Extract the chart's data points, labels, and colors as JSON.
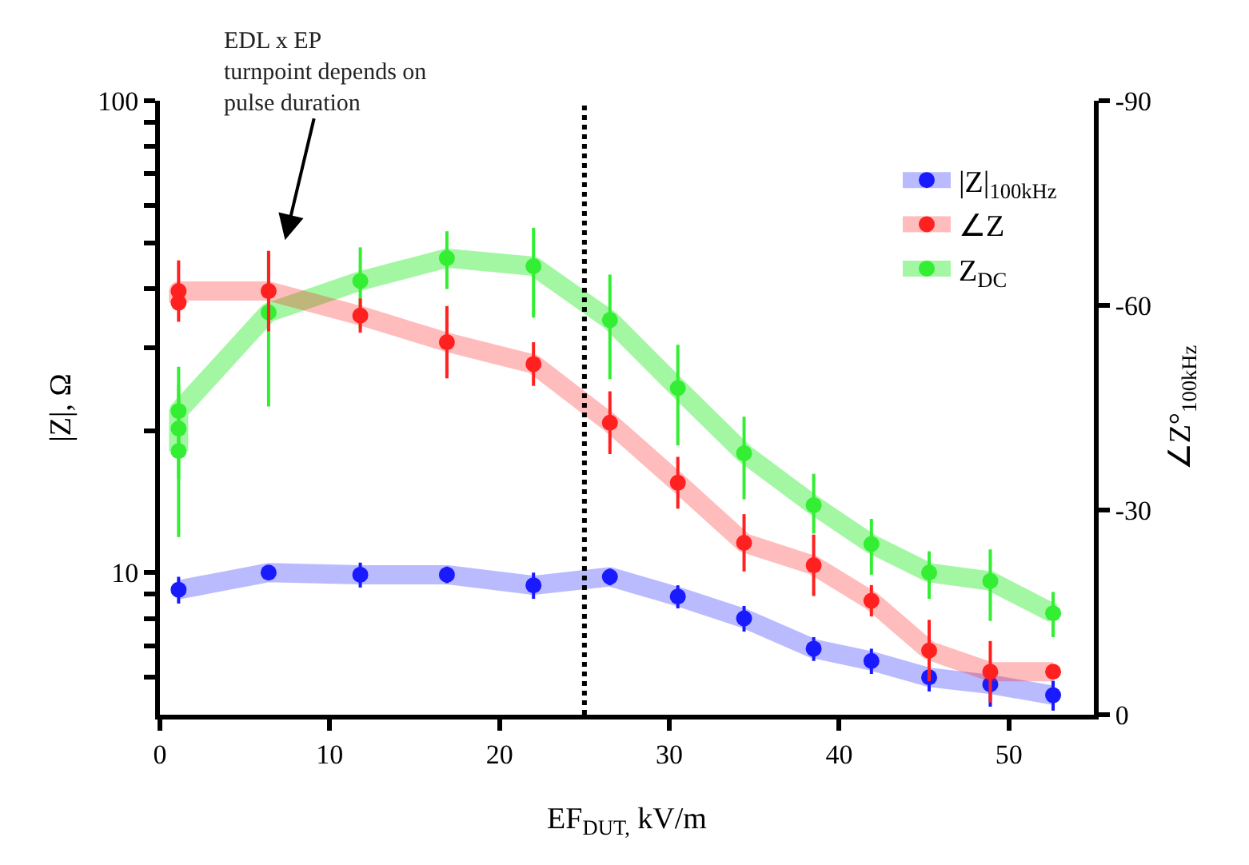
{
  "chart_data": {
    "type": "line",
    "xlabel": "EF$_{DUT,}$ kV/m",
    "ylabel": "|Z|, Ω",
    "y2label": "∠Z°$_{100kHz}$",
    "xlim": [
      0,
      55
    ],
    "xticks": [
      0,
      10,
      20,
      30,
      40,
      50
    ],
    "ylim": [
      5,
      100
    ],
    "yticks": [
      {
        "value": 6,
        "label": null
      },
      {
        "value": 7,
        "label": null
      },
      {
        "value": 8,
        "label": null
      },
      {
        "value": 9,
        "label": null
      },
      10,
      {
        "value": 20,
        "label": null
      },
      {
        "value": 30,
        "label": null
      },
      {
        "value": 40,
        "label": null
      },
      {
        "value": 50,
        "label": null
      },
      {
        "value": 60,
        "label": null
      },
      {
        "value": 70,
        "label": null
      },
      {
        "value": 80,
        "label": null
      },
      {
        "value": 90,
        "label": null
      },
      100
    ],
    "y2lim": [
      0,
      -90
    ],
    "y2ticks": [
      0,
      -30,
      -60,
      -90
    ],
    "log": "y",
    "legend": "top right",
    "marker": "circle",
    "line_style": "solid",
    "series": [
      {
        "name": "|Z|$_{100kHz}$",
        "color": "#1a1aff",
        "x": [
          1.1,
          6.4,
          11.8,
          16.9,
          22.0,
          26.5,
          30.5,
          34.4,
          38.5,
          41.9,
          45.3,
          48.9,
          52.6
        ],
        "values": [
          9.2,
          10.0,
          9.9,
          9.9,
          9.4,
          9.8,
          8.9,
          8.0,
          6.9,
          6.5,
          6.0,
          5.8,
          5.5
        ],
        "errors": [
          0.6,
          null,
          0.6,
          0.4,
          0.6,
          0.4,
          0.5,
          0.5,
          0.4,
          0.4,
          0.4,
          0.6,
          0.4
        ]
      },
      {
        "name": "∠Z",
        "color": "#ff2020",
        "axis": "y2",
        "x": [
          1.1,
          1.1,
          6.4,
          11.8,
          16.9,
          22.0,
          26.5,
          30.5,
          34.4,
          38.5,
          41.9,
          45.3,
          48.9,
          52.6
        ],
        "values": [
          -60.4,
          -62.1,
          -62.1,
          -58.5,
          -54.6,
          -51.4,
          -42.8,
          -34.0,
          -25.2,
          -21.9,
          -16.7,
          -9.4,
          -6.3,
          -6.3
        ],
        "errors": [
          null,
          4.5,
          5.9,
          2.5,
          5.3,
          3.2,
          4.6,
          3.8,
          4.2,
          4.5,
          2.3,
          4.5,
          4.5,
          null
        ]
      },
      {
        "name": "Z$_{DC}$",
        "color": "#33ee33",
        "x": [
          1.1,
          1.1,
          1.1,
          6.4,
          11.8,
          16.9,
          22.0,
          26.5,
          30.5,
          34.4,
          38.5,
          41.9,
          45.3,
          48.9,
          52.6
        ],
        "values": [
          18.1,
          20.2,
          22.0,
          35.6,
          41.5,
          46.4,
          44.6,
          34.3,
          24.6,
          17.9,
          13.9,
          11.5,
          10.0,
          9.6,
          8.2
        ],
        "errors": [
          [
            11.9,
            27.3
          ],
          [
            15.8,
            25.0
          ],
          null,
          [
            22.5,
            48
          ],
          [
            32.9,
            48.9
          ],
          [
            39.9,
            52.9
          ],
          [
            34.7,
            53.8
          ],
          [
            25.7,
            42.8
          ],
          [
            18.6,
            30.4
          ],
          [
            14.3,
            21.4
          ],
          [
            12.1,
            16.2
          ],
          [
            9.9,
            13.0
          ],
          [
            8.8,
            11.1
          ],
          [
            7.9,
            11.2
          ],
          [
            7.3,
            9.1
          ]
        ]
      }
    ],
    "ref_lines": [
      {
        "axis": "x",
        "value": 25,
        "color": "#000000",
        "line_style": "dotted"
      }
    ],
    "annotations": [
      "EDL x EP\nturnpoint depends on\npulse duration"
    ]
  }
}
